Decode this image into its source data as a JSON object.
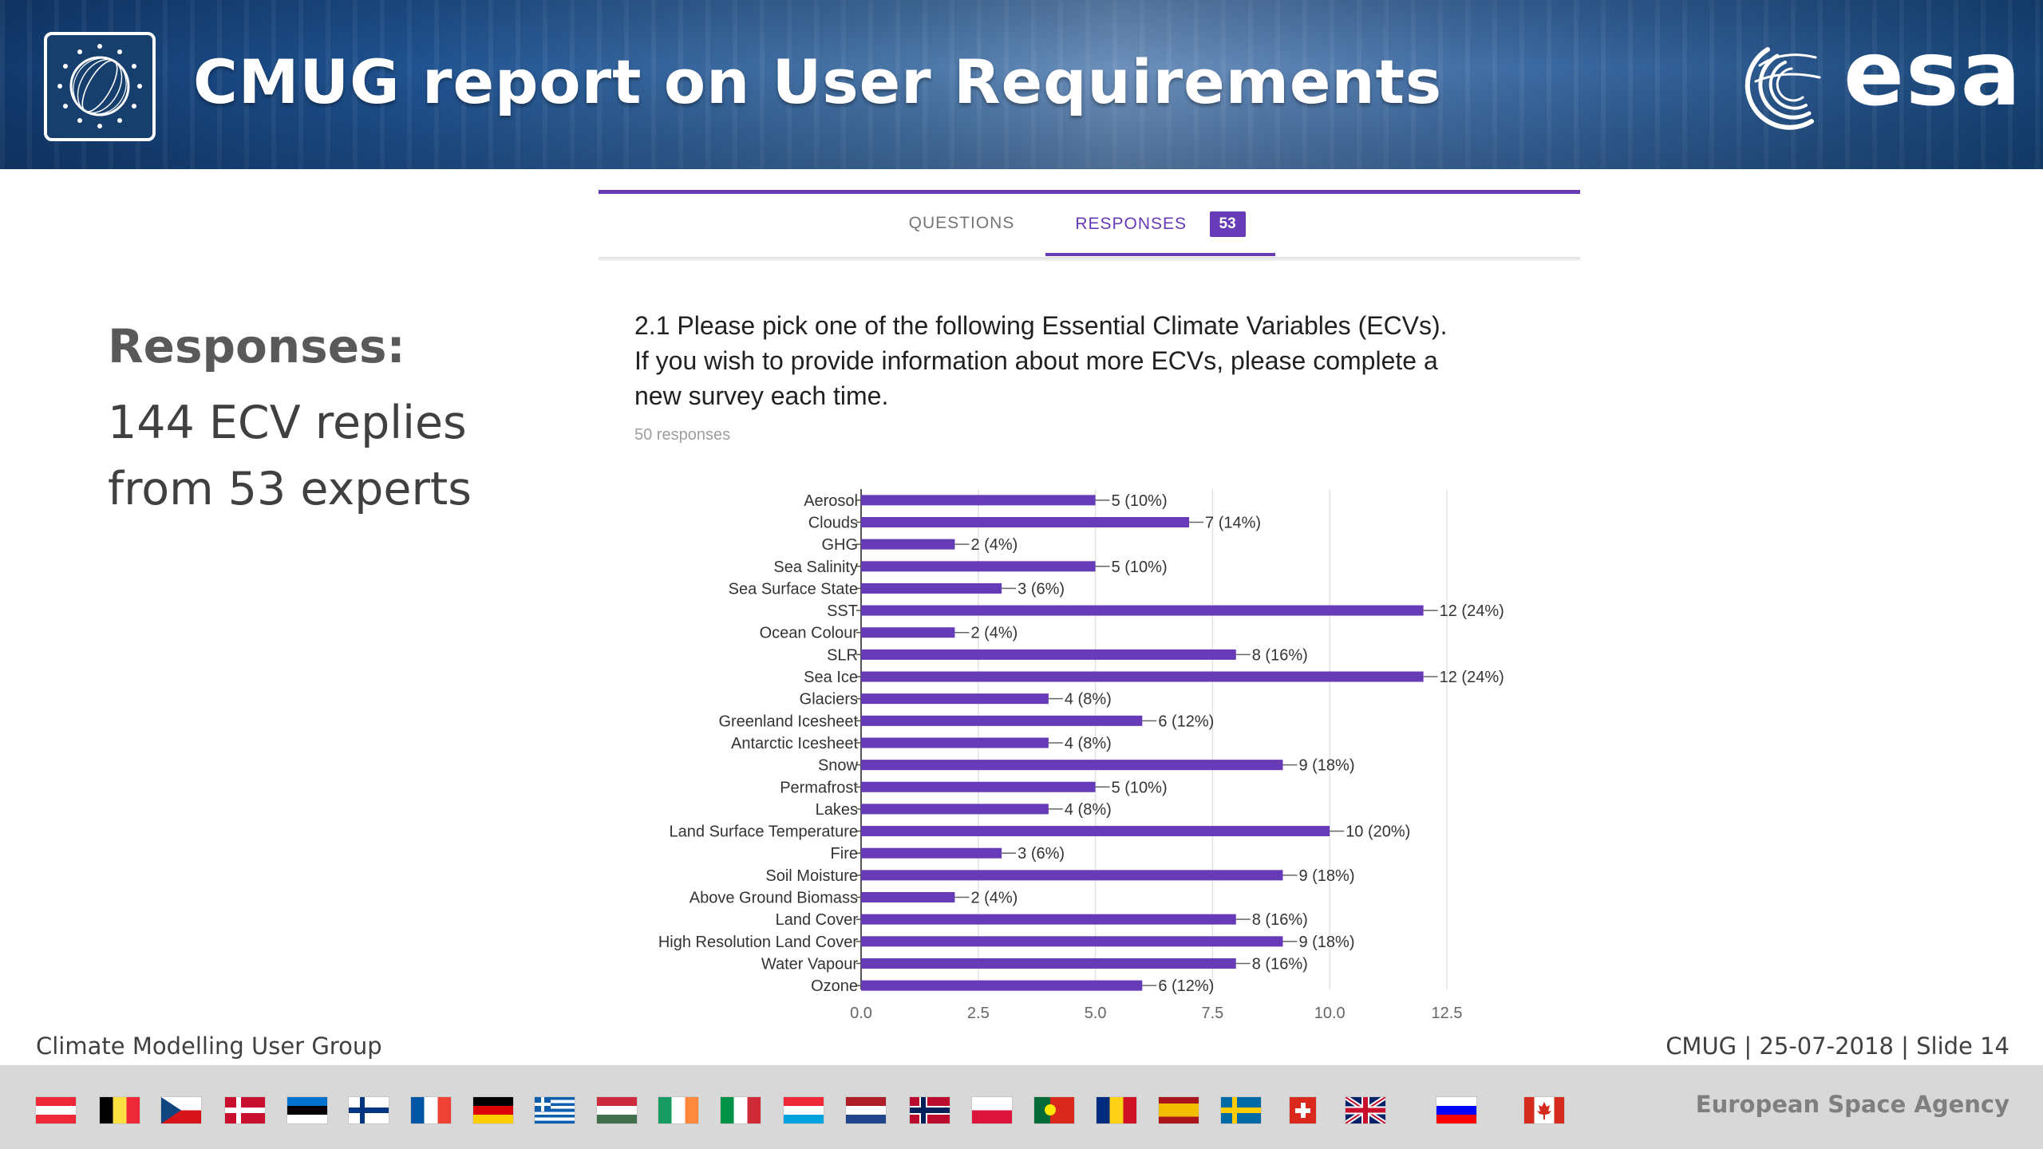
{
  "header": {
    "title": "CMUG report on User Requirements",
    "esa_wordmark": "esa"
  },
  "form": {
    "tab_questions": "QUESTIONS",
    "tab_responses": "RESPONSES",
    "responses_count": "53",
    "question_lines": [
      "2.1 Please pick one of the following Essential Climate Variables (ECVs).",
      "If you wish to provide information about more ECVs, please complete a",
      "new survey each time."
    ],
    "response_count_text": "50 responses"
  },
  "left_panel": {
    "heading": "Responses:",
    "line1": "144 ECV replies",
    "line2": "from 53 experts"
  },
  "chart_data": {
    "type": "bar",
    "orientation": "horizontal",
    "categories": [
      "Aerosol",
      "Clouds",
      "GHG",
      "Sea Salinity",
      "Sea Surface State",
      "SST",
      "Ocean Colour",
      "SLR",
      "Sea Ice",
      "Glaciers",
      "Greenland Icesheet",
      "Antarctic Icesheet",
      "Snow",
      "Permafrost",
      "Lakes",
      "Land Surface Temperature",
      "Fire",
      "Soil Moisture",
      "Above Ground Biomass",
      "Land Cover",
      "High Resolution Land Cover",
      "Water Vapour",
      "Ozone"
    ],
    "values": [
      5,
      7,
      2,
      5,
      3,
      12,
      2,
      8,
      12,
      4,
      6,
      4,
      9,
      5,
      4,
      10,
      3,
      9,
      2,
      8,
      9,
      8,
      6
    ],
    "data_labels": [
      "5 (10%)",
      "7 (14%)",
      "2 (4%)",
      "5 (10%)",
      "3 (6%)",
      "12 (24%)",
      "2 (4%)",
      "8 (16%)",
      "12 (24%)",
      "4 (8%)",
      "6 (12%)",
      "4 (8%)",
      "9 (18%)",
      "5 (10%)",
      "4 (8%)",
      "10 (20%)",
      "3 (6%)",
      "9 (18%)",
      "2 (4%)",
      "8 (16%)",
      "9 (18%)",
      "8 (16%)",
      "6 (12%)"
    ],
    "xlim": [
      0,
      12.5
    ],
    "xticks": [
      "0.0",
      "2.5",
      "5.0",
      "7.5",
      "10.0",
      "12.5"
    ],
    "grid": true,
    "bar_color": "#673ab7",
    "title": "",
    "xlabel": "",
    "ylabel": ""
  },
  "footer": {
    "left": "Climate Modelling User Group",
    "right": "CMUG | 25-07-2018 | Slide  14",
    "agency": "European Space Agency"
  },
  "flags": [
    {
      "name": "austria-flag-icon",
      "colors": [
        "#ed2939",
        "#ffffff",
        "#ed2939"
      ],
      "dir": "h"
    },
    {
      "name": "belgium-flag-icon",
      "colors": [
        "#000000",
        "#fae042",
        "#ed2939"
      ],
      "dir": "v"
    },
    {
      "name": "czech-flag-icon",
      "type": "czech"
    },
    {
      "name": "denmark-flag-icon",
      "type": "nordic",
      "bg": "#c8102e",
      "cross": "#ffffff"
    },
    {
      "name": "estonia-flag-icon",
      "colors": [
        "#0072ce",
        "#000000",
        "#ffffff"
      ],
      "dir": "h"
    },
    {
      "name": "finland-flag-icon",
      "type": "nordic",
      "bg": "#ffffff",
      "cross": "#003580"
    },
    {
      "name": "france-flag-icon",
      "colors": [
        "#0055a4",
        "#ffffff",
        "#ef4135"
      ],
      "dir": "v"
    },
    {
      "name": "germany-flag-icon",
      "colors": [
        "#000000",
        "#dd0000",
        "#ffce00"
      ],
      "dir": "h"
    },
    {
      "name": "greece-flag-icon",
      "type": "greece"
    },
    {
      "name": "hungary-flag-icon",
      "colors": [
        "#cd2a3e",
        "#ffffff",
        "#436f4d"
      ],
      "dir": "h"
    },
    {
      "name": "ireland-flag-icon",
      "colors": [
        "#169b62",
        "#ffffff",
        "#ff883e"
      ],
      "dir": "v"
    },
    {
      "name": "italy-flag-icon",
      "colors": [
        "#009246",
        "#ffffff",
        "#ce2b37"
      ],
      "dir": "v"
    },
    {
      "name": "luxembourg-flag-icon",
      "colors": [
        "#ed2939",
        "#ffffff",
        "#00a1de"
      ],
      "dir": "h"
    },
    {
      "name": "netherlands-flag-icon",
      "colors": [
        "#ae1c28",
        "#ffffff",
        "#21468b"
      ],
      "dir": "h"
    },
    {
      "name": "norway-flag-icon",
      "type": "nordic",
      "bg": "#ba0c2f",
      "cross": "#00205b",
      "border": "#ffffff"
    },
    {
      "name": "poland-flag-icon",
      "colors": [
        "#ffffff",
        "#dc143c"
      ],
      "dir": "h"
    },
    {
      "name": "portugal-flag-icon",
      "type": "portugal"
    },
    {
      "name": "romania-flag-icon",
      "colors": [
        "#002b7f",
        "#fcd116",
        "#ce1126"
      ],
      "dir": "v"
    },
    {
      "name": "spain-flag-icon",
      "type": "spain"
    },
    {
      "name": "sweden-flag-icon",
      "type": "nordic",
      "bg": "#006aa7",
      "cross": "#fecc00"
    },
    {
      "name": "switzerland-flag-icon",
      "type": "swiss"
    },
    {
      "name": "uk-flag-icon",
      "type": "uk"
    },
    {
      "name": "slovenia-flag-icon",
      "colors": [
        "#ffffff",
        "#0000ff",
        "#ff0000"
      ],
      "dir": "h"
    },
    {
      "name": "canada-flag-icon",
      "type": "canada"
    }
  ]
}
